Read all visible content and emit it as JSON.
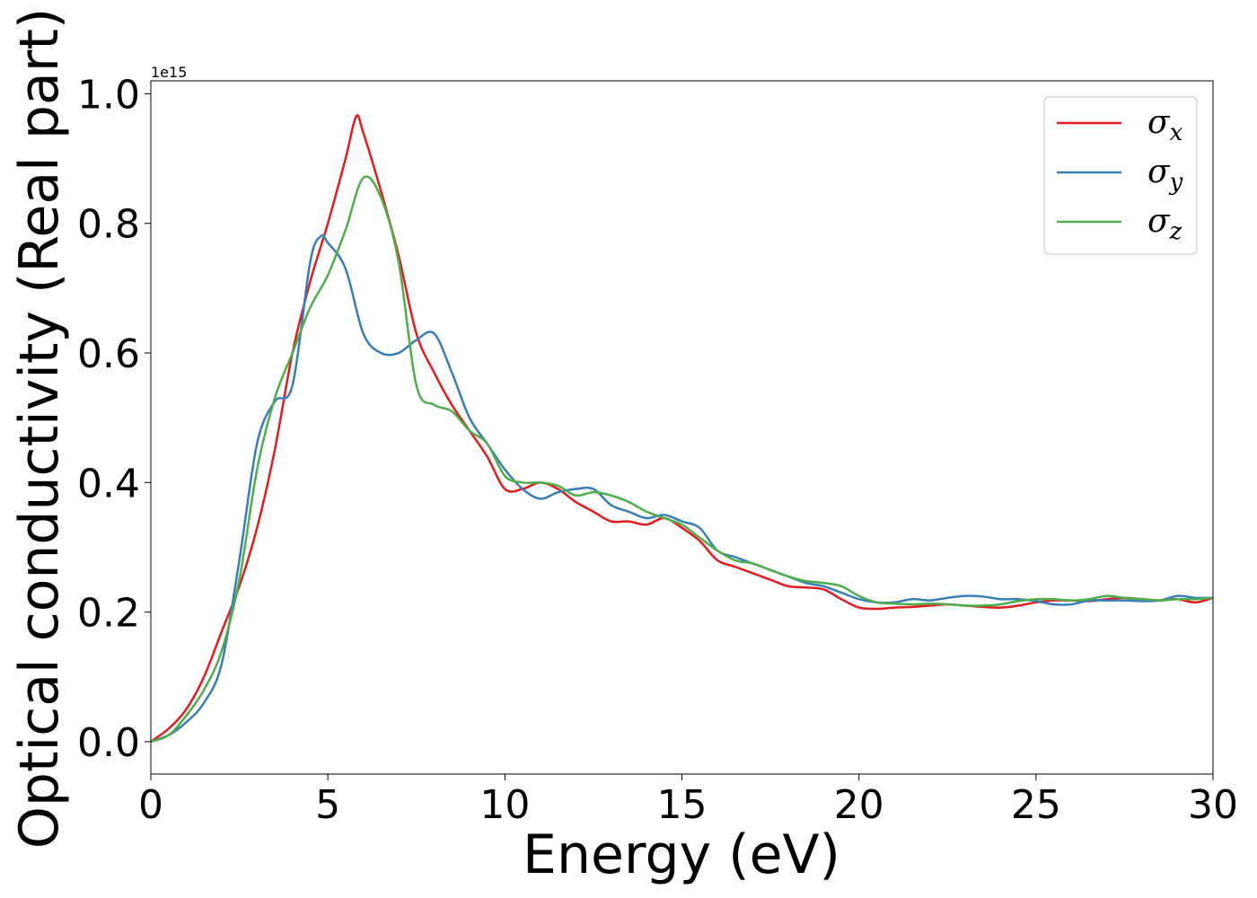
{
  "chart_data": {
    "type": "line",
    "xlabel": "Energy (eV)",
    "ylabel": "Optical conductivity (Real part)",
    "y_offset_text": "1e15",
    "xlim": [
      0,
      30
    ],
    "ylim": [
      -0.05,
      1.02
    ],
    "y_scale_factor": 1000000000000000.0,
    "xticks": [
      0,
      5,
      10,
      15,
      20,
      25,
      30
    ],
    "xtick_labels": [
      "0",
      "5",
      "10",
      "15",
      "20",
      "25",
      "30"
    ],
    "yticks": [
      0.0,
      0.2,
      0.4,
      0.6,
      0.8,
      1.0
    ],
    "ytick_labels": [
      "0.0",
      "0.2",
      "0.4",
      "0.6",
      "0.8",
      "1.0"
    ],
    "grid": false,
    "legend_position": "top-right",
    "series": [
      {
        "name": "σx",
        "legend_base": "σ",
        "legend_sub": "x",
        "color": "#e41a1c",
        "x": [
          0,
          0.5,
          1.0,
          1.5,
          2.0,
          2.5,
          3.0,
          3.5,
          4.0,
          4.5,
          5.0,
          5.5,
          5.8,
          6.0,
          6.5,
          7.0,
          7.5,
          8.0,
          8.5,
          9.0,
          9.5,
          10.0,
          10.5,
          11.0,
          11.5,
          12.0,
          12.5,
          13.0,
          13.5,
          14.0,
          14.5,
          15.0,
          15.5,
          16.0,
          16.5,
          17.0,
          17.5,
          18.0,
          18.5,
          19.0,
          19.5,
          20.0,
          20.5,
          21.0,
          21.5,
          22.0,
          22.5,
          23.0,
          23.5,
          24.0,
          24.5,
          25.0,
          25.5,
          26.0,
          26.5,
          27.0,
          27.5,
          28.0,
          28.5,
          29.0,
          29.5,
          30.0
        ],
        "y": [
          0.0,
          0.02,
          0.05,
          0.1,
          0.17,
          0.24,
          0.33,
          0.45,
          0.6,
          0.71,
          0.8,
          0.9,
          0.965,
          0.94,
          0.85,
          0.75,
          0.63,
          0.57,
          0.52,
          0.48,
          0.44,
          0.39,
          0.39,
          0.4,
          0.39,
          0.37,
          0.355,
          0.34,
          0.34,
          0.335,
          0.345,
          0.33,
          0.31,
          0.28,
          0.27,
          0.26,
          0.25,
          0.24,
          0.238,
          0.235,
          0.22,
          0.207,
          0.205,
          0.207,
          0.208,
          0.21,
          0.212,
          0.21,
          0.208,
          0.207,
          0.21,
          0.215,
          0.218,
          0.218,
          0.217,
          0.22,
          0.222,
          0.22,
          0.218,
          0.22,
          0.215,
          0.222
        ]
      },
      {
        "name": "σy",
        "legend_base": "σ",
        "legend_sub": "y",
        "color": "#377eb8",
        "x": [
          0,
          0.5,
          1.0,
          1.5,
          2.0,
          2.5,
          3.0,
          3.5,
          4.0,
          4.5,
          4.8,
          5.0,
          5.5,
          6.0,
          6.5,
          7.0,
          7.5,
          8.0,
          8.5,
          9.0,
          9.5,
          10.0,
          10.5,
          11.0,
          11.5,
          12.0,
          12.5,
          13.0,
          13.5,
          14.0,
          14.5,
          15.0,
          15.5,
          16.0,
          16.5,
          17.0,
          17.5,
          18.0,
          18.5,
          19.0,
          19.5,
          20.0,
          20.5,
          21.0,
          21.5,
          22.0,
          22.5,
          23.0,
          23.5,
          24.0,
          24.5,
          25.0,
          25.5,
          26.0,
          26.5,
          27.0,
          27.5,
          28.0,
          28.5,
          29.0,
          29.5,
          30.0
        ],
        "y": [
          0.0,
          0.01,
          0.03,
          0.06,
          0.12,
          0.28,
          0.46,
          0.525,
          0.55,
          0.74,
          0.78,
          0.77,
          0.73,
          0.63,
          0.6,
          0.6,
          0.62,
          0.63,
          0.57,
          0.5,
          0.46,
          0.42,
          0.39,
          0.375,
          0.385,
          0.39,
          0.39,
          0.365,
          0.355,
          0.345,
          0.35,
          0.34,
          0.33,
          0.295,
          0.285,
          0.275,
          0.265,
          0.255,
          0.245,
          0.24,
          0.23,
          0.22,
          0.215,
          0.215,
          0.22,
          0.218,
          0.222,
          0.225,
          0.224,
          0.22,
          0.22,
          0.217,
          0.212,
          0.212,
          0.218,
          0.218,
          0.218,
          0.217,
          0.218,
          0.225,
          0.222,
          0.222
        ]
      },
      {
        "name": "σz",
        "legend_base": "σ",
        "legend_sub": "z",
        "color": "#4daf4a",
        "x": [
          0,
          0.5,
          1.0,
          1.5,
          2.0,
          2.5,
          3.0,
          3.5,
          4.0,
          4.5,
          5.0,
          5.5,
          6.0,
          6.5,
          7.0,
          7.5,
          8.0,
          8.5,
          9.0,
          9.5,
          10.0,
          10.5,
          11.0,
          11.5,
          12.0,
          12.5,
          13.0,
          13.5,
          14.0,
          14.5,
          15.0,
          15.5,
          16.0,
          16.5,
          17.0,
          17.5,
          18.0,
          18.5,
          19.0,
          19.5,
          20.0,
          20.5,
          21.0,
          21.5,
          22.0,
          22.5,
          23.0,
          23.5,
          24.0,
          24.5,
          25.0,
          25.5,
          26.0,
          26.5,
          27.0,
          27.5,
          28.0,
          28.5,
          29.0,
          29.5,
          30.0
        ],
        "y": [
          0.0,
          0.01,
          0.04,
          0.08,
          0.14,
          0.25,
          0.42,
          0.53,
          0.6,
          0.67,
          0.72,
          0.79,
          0.87,
          0.84,
          0.74,
          0.55,
          0.52,
          0.51,
          0.48,
          0.46,
          0.41,
          0.4,
          0.4,
          0.395,
          0.38,
          0.385,
          0.38,
          0.37,
          0.355,
          0.345,
          0.335,
          0.315,
          0.295,
          0.28,
          0.275,
          0.265,
          0.255,
          0.248,
          0.245,
          0.24,
          0.225,
          0.215,
          0.213,
          0.212,
          0.213,
          0.212,
          0.21,
          0.21,
          0.212,
          0.217,
          0.22,
          0.22,
          0.218,
          0.22,
          0.225,
          0.222,
          0.22,
          0.218,
          0.22,
          0.22,
          0.222
        ]
      }
    ]
  }
}
